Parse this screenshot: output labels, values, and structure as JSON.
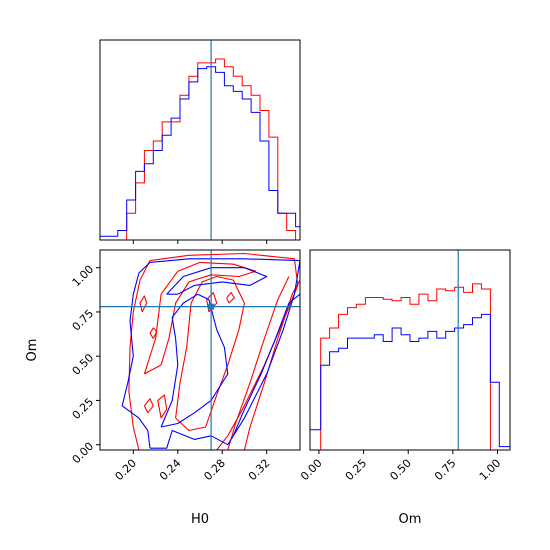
{
  "chart_data": {
    "type": "corner",
    "parameters": [
      "H0",
      "Om"
    ],
    "truths": {
      "H0": 0.27,
      "Om": 0.78
    },
    "series": [
      {
        "color": "#ff0000"
      },
      {
        "color": "#0000ff"
      }
    ],
    "truth_color": "#1f77b4",
    "grid": false,
    "legend": "none",
    "panels": [
      {
        "id": "hist-H0",
        "type": "histogram",
        "xlim": [
          0.17,
          0.35
        ],
        "x_ticks": [
          0.2,
          0.24,
          0.28,
          0.32
        ],
        "tick_labels_shown": false,
        "bin_edges": [
          0.17,
          0.178,
          0.186,
          0.194,
          0.202,
          0.21,
          0.218,
          0.226,
          0.234,
          0.242,
          0.25,
          0.258,
          0.266,
          0.274,
          0.282,
          0.29,
          0.298,
          0.306,
          0.314,
          0.322,
          0.33,
          0.338,
          0.346,
          0.35
        ],
        "counts": [
          [
            0,
            0,
            0,
            0.14,
            0.3,
            0.47,
            0.52,
            0.62,
            0.62,
            0.76,
            0.86,
            0.93,
            0.93,
            0.95,
            0.91,
            0.86,
            0.81,
            0.76,
            0.68,
            0.54,
            0.14,
            0.05,
            0
          ],
          [
            0.02,
            0.02,
            0.05,
            0.21,
            0.36,
            0.4,
            0.47,
            0.55,
            0.64,
            0.74,
            0.83,
            0.9,
            0.91,
            0.88,
            0.81,
            0.78,
            0.74,
            0.67,
            0.52,
            0.26,
            0.14,
            0.14,
            0.07
          ]
        ],
        "ylim": [
          0,
          1.05
        ]
      },
      {
        "id": "hist-Om",
        "type": "histogram",
        "xlim": [
          -0.05,
          1.07
        ],
        "x_ticks": [
          0.0,
          0.25,
          0.5,
          0.75,
          1.0
        ],
        "x_tick_labels": [
          "0.00",
          "0.25",
          "0.50",
          "0.75",
          "1.00"
        ],
        "xlabel": "Om",
        "bin_edges": [
          -0.05,
          0.01,
          0.06,
          0.11,
          0.16,
          0.21,
          0.26,
          0.31,
          0.36,
          0.41,
          0.46,
          0.51,
          0.56,
          0.61,
          0.66,
          0.71,
          0.76,
          0.81,
          0.86,
          0.91,
          0.96,
          1.01,
          1.07
        ],
        "counts": [
          [
            0,
            0.66,
            0.72,
            0.8,
            0.84,
            0.86,
            0.9,
            0.9,
            0.89,
            0.88,
            0.9,
            0.86,
            0.92,
            0.88,
            0.95,
            0.94,
            0.96,
            0.93,
            0.98,
            0.95,
            0.0,
            0.0
          ],
          [
            0.12,
            0.5,
            0.58,
            0.6,
            0.66,
            0.66,
            0.66,
            0.68,
            0.64,
            0.72,
            0.68,
            0.64,
            0.66,
            0.7,
            0.66,
            0.7,
            0.72,
            0.74,
            0.78,
            0.8,
            0.4,
            0.02
          ]
        ],
        "ylim": [
          0,
          1.18
        ]
      },
      {
        "id": "joint-H0-Om",
        "type": "contour",
        "xlim": [
          0.17,
          0.35
        ],
        "ylim": [
          -0.03,
          1.1
        ],
        "x_ticks": [
          0.2,
          0.24,
          0.28,
          0.32
        ],
        "x_tick_labels": [
          "0.20",
          "0.24",
          "0.28",
          "0.32"
        ],
        "y_ticks": [
          0.0,
          0.25,
          0.5,
          0.75,
          1.0
        ],
        "y_tick_labels": [
          "0.00",
          "0.25",
          "0.50",
          "0.75",
          "1.00"
        ],
        "xlabel": "H0",
        "ylabel": "Om",
        "contours": [
          {
            "series": 0,
            "points": [
              [
                0.205,
                -0.03
              ],
              [
                0.2,
                0.1
              ],
              [
                0.196,
                0.3
              ],
              [
                0.197,
                0.55
              ],
              [
                0.2,
                0.75
              ],
              [
                0.206,
                0.93
              ],
              [
                0.215,
                1.04
              ],
              [
                0.25,
                1.07
              ],
              [
                0.3,
                1.08
              ],
              [
                0.345,
                1.05
              ],
              [
                0.348,
                0.9
              ],
              [
                0.335,
                0.7
              ],
              [
                0.318,
                0.45
              ],
              [
                0.3,
                0.22
              ],
              [
                0.285,
                0.05
              ],
              [
                0.275,
                -0.03
              ]
            ]
          },
          {
            "series": 0,
            "points": [
              [
                0.3,
                -0.03
              ],
              [
                0.305,
                0.1
              ],
              [
                0.318,
                0.35
              ],
              [
                0.33,
                0.6
              ],
              [
                0.343,
                0.85
              ],
              [
                0.35,
                0.93
              ]
            ]
          },
          {
            "series": 0,
            "points": [
              [
                0.285,
                -0.03
              ],
              [
                0.292,
                0.12
              ],
              [
                0.305,
                0.35
              ],
              [
                0.318,
                0.6
              ],
              [
                0.33,
                0.82
              ],
              [
                0.34,
                0.95
              ]
            ]
          },
          {
            "series": 0,
            "points": [
              [
                0.238,
                0.15
              ],
              [
                0.242,
                0.35
              ],
              [
                0.248,
                0.55
              ],
              [
                0.252,
                0.8
              ],
              [
                0.262,
                0.92
              ],
              [
                0.275,
                0.95
              ],
              [
                0.29,
                0.93
              ],
              [
                0.3,
                0.8
              ],
              [
                0.295,
                0.65
              ],
              [
                0.285,
                0.45
              ],
              [
                0.275,
                0.28
              ],
              [
                0.265,
                0.1
              ],
              [
                0.25,
                0.08
              ],
              [
                0.238,
                0.15
              ]
            ]
          },
          {
            "series": 0,
            "points": [
              [
                0.21,
                0.4
              ],
              [
                0.22,
                0.6
              ],
              [
                0.225,
                0.85
              ],
              [
                0.24,
                0.98
              ],
              [
                0.26,
                1.03
              ],
              [
                0.29,
                1.02
              ],
              [
                0.31,
                0.98
              ],
              [
                0.295,
                0.95
              ],
              [
                0.27,
                0.96
              ],
              [
                0.25,
                0.92
              ],
              [
                0.238,
                0.8
              ],
              [
                0.232,
                0.6
              ],
              [
                0.225,
                0.45
              ],
              [
                0.21,
                0.4
              ]
            ]
          },
          {
            "series": 0,
            "points": [
              [
                0.225,
                0.15
              ],
              [
                0.23,
                0.2
              ],
              [
                0.228,
                0.28
              ],
              [
                0.222,
                0.25
              ],
              [
                0.225,
                0.15
              ]
            ]
          },
          {
            "series": 0,
            "points": [
              [
                0.213,
                0.18
              ],
              [
                0.218,
                0.22
              ],
              [
                0.215,
                0.26
              ],
              [
                0.21,
                0.22
              ],
              [
                0.213,
                0.18
              ]
            ]
          },
          {
            "series": 0,
            "points": [
              [
                0.218,
                0.6
              ],
              [
                0.221,
                0.64
              ],
              [
                0.218,
                0.66
              ],
              [
                0.215,
                0.63
              ],
              [
                0.218,
                0.6
              ]
            ]
          },
          {
            "series": 0,
            "points": [
              [
                0.208,
                0.75
              ],
              [
                0.212,
                0.8
              ],
              [
                0.21,
                0.84
              ],
              [
                0.206,
                0.8
              ],
              [
                0.208,
                0.75
              ]
            ]
          },
          {
            "series": 0,
            "points": [
              [
                0.286,
                0.8
              ],
              [
                0.291,
                0.83
              ],
              [
                0.288,
                0.86
              ],
              [
                0.284,
                0.83
              ],
              [
                0.286,
                0.8
              ]
            ]
          },
          {
            "series": 0,
            "points": [
              [
                0.268,
                0.75
              ],
              [
                0.275,
                0.8
              ],
              [
                0.272,
                0.86
              ],
              [
                0.266,
                0.82
              ],
              [
                0.268,
                0.75
              ]
            ]
          },
          {
            "series": 1,
            "points": [
              [
                0.215,
                -0.02
              ],
              [
                0.213,
                0.08
              ],
              [
                0.205,
                0.15
              ],
              [
                0.19,
                0.22
              ],
              [
                0.195,
                0.35
              ],
              [
                0.2,
                0.5
              ],
              [
                0.197,
                0.7
              ],
              [
                0.2,
                0.85
              ],
              [
                0.205,
                0.97
              ],
              [
                0.215,
                1.03
              ],
              [
                0.25,
                1.05
              ],
              [
                0.3,
                1.05
              ],
              [
                0.35,
                1.04
              ],
              [
                0.345,
                0.85
              ],
              [
                0.335,
                0.65
              ],
              [
                0.32,
                0.4
              ],
              [
                0.3,
                0.15
              ],
              [
                0.285,
                0.0
              ],
              [
                0.27,
                0.05
              ],
              [
                0.255,
                0.03
              ],
              [
                0.235,
                0.08
              ],
              [
                0.23,
                -0.02
              ],
              [
                0.215,
                -0.02
              ]
            ]
          },
          {
            "series": 1,
            "points": [
              [
                0.225,
                0.1
              ],
              [
                0.235,
                0.25
              ],
              [
                0.24,
                0.45
              ],
              [
                0.238,
                0.6
              ],
              [
                0.235,
                0.72
              ],
              [
                0.245,
                0.8
              ],
              [
                0.258,
                0.85
              ],
              [
                0.268,
                0.82
              ],
              [
                0.275,
                0.65
              ],
              [
                0.282,
                0.55
              ],
              [
                0.285,
                0.4
              ],
              [
                0.27,
                0.25
              ],
              [
                0.255,
                0.18
              ],
              [
                0.24,
                0.12
              ],
              [
                0.225,
                0.1
              ]
            ]
          },
          {
            "series": 1,
            "points": [
              [
                0.23,
                0.85
              ],
              [
                0.245,
                0.95
              ],
              [
                0.27,
                1.0
              ],
              [
                0.3,
                1.0
              ],
              [
                0.32,
                0.95
              ],
              [
                0.305,
                0.9
              ],
              [
                0.28,
                0.92
              ],
              [
                0.255,
                0.9
              ],
              [
                0.24,
                0.85
              ],
              [
                0.23,
                0.85
              ]
            ]
          },
          {
            "series": 1,
            "points": [
              [
                0.29,
                0.05
              ],
              [
                0.3,
                0.2
              ],
              [
                0.315,
                0.4
              ],
              [
                0.328,
                0.6
              ],
              [
                0.34,
                0.8
              ],
              [
                0.35,
                0.85
              ]
            ]
          }
        ]
      }
    ]
  }
}
